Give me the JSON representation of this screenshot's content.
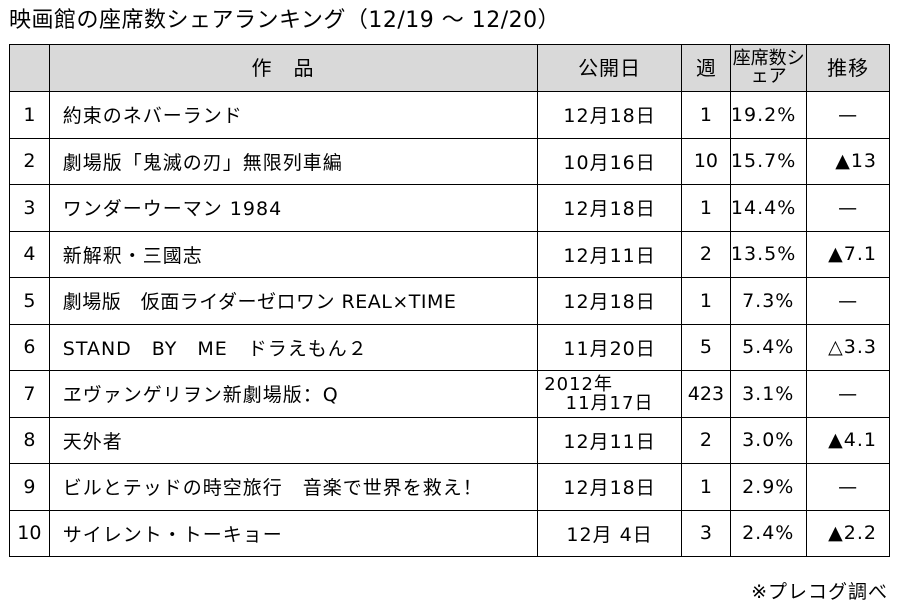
{
  "title": "映画館の座席数シェアランキング（12/19 〜 12/20）",
  "columns": {
    "rank": "",
    "title": "作品",
    "release": "公開日",
    "week": "週",
    "share": "座席数シェア",
    "trend": "推移"
  },
  "rows": [
    {
      "rank": "1",
      "title": "約束のネバーランド",
      "release": "12月18日",
      "week": "1",
      "share": "19.2%",
      "trend": "—"
    },
    {
      "rank": "2",
      "title": "劇場版「鬼滅の刃」無限列車編",
      "release": "10月16日",
      "week": "10",
      "share": "15.7%",
      "trend": "▲13"
    },
    {
      "rank": "3",
      "title": "ワンダーウーマン 1984",
      "release": "12月18日",
      "week": "1",
      "share": "14.4%",
      "trend": "—"
    },
    {
      "rank": "4",
      "title": "新解釈・三國志",
      "release": "12月11日",
      "week": "2",
      "share": "13.5%",
      "trend": "▲7.1"
    },
    {
      "rank": "5",
      "title": "劇場版　仮面ライダーゼロワン REAL×TIME",
      "release": "12月18日",
      "week": "1",
      "share": "7.3%",
      "trend": "—"
    },
    {
      "rank": "6",
      "title": "STAND　BY　ME　ドラえもん２",
      "release": "11月20日",
      "week": "5",
      "share": "5.4%",
      "trend": "△3.3"
    },
    {
      "rank": "7",
      "title": "ヱヴァンゲリヲン新劇場版：Q",
      "release_line1": "2012年",
      "release_line2": "11月17日",
      "week": "423",
      "share": "3.1%",
      "trend": "—"
    },
    {
      "rank": "8",
      "title": "天外者",
      "release": "12月11日",
      "week": "2",
      "share": "3.0%",
      "trend": "▲4.1"
    },
    {
      "rank": "9",
      "title": "ビルとテッドの時空旅行　音楽で世界を救え！",
      "release": "12月18日",
      "week": "1",
      "share": "2.9%",
      "trend": "—"
    },
    {
      "rank": "10",
      "title": "サイレント・トーキョー",
      "release": "12月 4日",
      "week": "3",
      "share": "2.4%",
      "trend": "▲2.2"
    }
  ],
  "note": "※プレコグ調べ",
  "colors": {
    "header_bg": "#d9d9d9",
    "border": "#000000",
    "text": "#000000"
  }
}
